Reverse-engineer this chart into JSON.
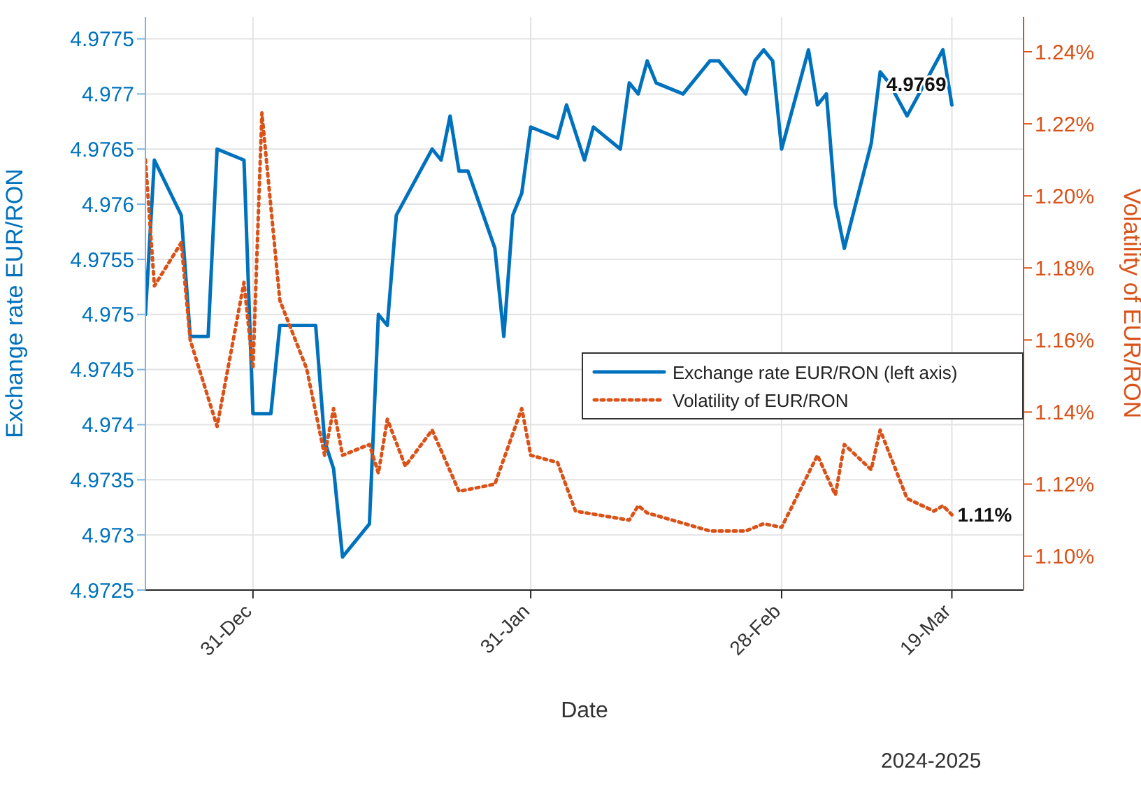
{
  "chart_data": {
    "type": "line",
    "xlabel": "Date",
    "ylabel": "Exchange rate EUR/RON",
    "y2label": "Volatility of EUR/RON",
    "xlim": [
      "2024-12-19",
      "2025-03-27"
    ],
    "xticks": [
      {
        "value": "2024-12-31",
        "label": "31-Dec"
      },
      {
        "value": "2025-01-31",
        "label": "31-Jan"
      },
      {
        "value": "2025-02-28",
        "label": "28-Feb"
      },
      {
        "value": "2025-03-19",
        "label": "19-Mar"
      }
    ],
    "ylim": [
      4.9725,
      4.9777
    ],
    "yticks": [
      4.9725,
      4.973,
      4.9735,
      4.974,
      4.9745,
      4.975,
      4.9755,
      4.976,
      4.9765,
      4.977,
      4.9775
    ],
    "y2lim": [
      1.0906,
      1.2497
    ],
    "y2ticks": [
      {
        "value": 1.1,
        "label": "1.10%"
      },
      {
        "value": 1.12,
        "label": "1.12%"
      },
      {
        "value": 1.14,
        "label": "1.14%"
      },
      {
        "value": 1.16,
        "label": "1.16%"
      },
      {
        "value": 1.18,
        "label": "1.18%"
      },
      {
        "value": 1.2,
        "label": "1.20%"
      },
      {
        "value": 1.22,
        "label": "1.22%"
      },
      {
        "value": 1.24,
        "label": "1.24%"
      }
    ],
    "grid": true,
    "legend": "right",
    "marker": "none",
    "series": [
      {
        "name": "Exchange rate EUR/RON (left axis)",
        "color": "#0072bd",
        "line_style": "solid",
        "x": [
          "2024-12-19",
          "2024-12-20",
          "2024-12-23",
          "2024-12-24",
          "2024-12-26",
          "2024-12-27",
          "2024-12-30",
          "2024-12-31",
          "2025-01-02",
          "2025-01-03",
          "2025-01-07",
          "2025-01-08",
          "2025-01-09",
          "2025-01-10",
          "2025-01-13",
          "2025-01-14",
          "2025-01-15",
          "2025-01-16",
          "2025-01-20",
          "2025-01-21",
          "2025-01-22",
          "2025-01-23",
          "2025-01-24",
          "2025-01-27",
          "2025-01-28",
          "2025-01-29",
          "2025-01-30",
          "2025-01-31",
          "2025-02-03",
          "2025-02-04",
          "2025-02-06",
          "2025-02-07",
          "2025-02-10",
          "2025-02-11",
          "2025-02-12",
          "2025-02-13",
          "2025-02-14",
          "2025-02-17",
          "2025-02-20",
          "2025-02-21",
          "2025-02-24",
          "2025-02-25",
          "2025-02-26",
          "2025-02-27",
          "2025-02-28",
          "2025-03-03",
          "2025-03-04",
          "2025-03-05",
          "2025-03-06",
          "2025-03-07",
          "2025-03-10",
          "2025-03-11",
          "2025-03-12",
          "2025-03-14",
          "2025-03-17",
          "2025-03-18",
          "2025-03-19"
        ],
        "values": [
          4.975,
          4.9764,
          4.9759,
          4.9748,
          4.9748,
          4.9765,
          4.9764,
          4.9741,
          4.9741,
          4.9749,
          4.9749,
          4.97385,
          4.9736,
          4.9728,
          4.9731,
          4.975,
          4.9749,
          4.9759,
          4.9765,
          4.9764,
          4.9768,
          4.9763,
          4.9763,
          4.9756,
          4.9748,
          4.9759,
          4.9761,
          4.9767,
          4.9766,
          4.9769,
          4.9764,
          4.9767,
          4.9765,
          4.9771,
          4.977,
          4.9773,
          4.9771,
          4.977,
          4.9773,
          4.9773,
          4.977,
          4.9773,
          4.9774,
          4.9773,
          4.9765,
          4.9774,
          4.9769,
          4.977,
          4.976,
          4.9756,
          4.97655,
          4.9772,
          4.9771,
          4.9768,
          4.97725,
          4.9774,
          4.9769
        ]
      },
      {
        "name": "Volatility of EUR/RON",
        "color": "#d95319",
        "line_style": "dotted",
        "axis": "y2",
        "x": [
          "2024-12-19",
          "2024-12-20",
          "2024-12-23",
          "2024-12-24",
          "2024-12-27",
          "2024-12-30",
          "2024-12-31",
          "2025-01-01",
          "2025-01-03",
          "2025-01-06",
          "2025-01-08",
          "2025-01-09",
          "2025-01-10",
          "2025-01-13",
          "2025-01-14",
          "2025-01-15",
          "2025-01-17",
          "2025-01-20",
          "2025-01-23",
          "2025-01-27",
          "2025-01-30",
          "2025-01-31",
          "2025-02-03",
          "2025-02-05",
          "2025-02-11",
          "2025-02-12",
          "2025-02-13",
          "2025-02-20",
          "2025-02-24",
          "2025-02-26",
          "2025-02-28",
          "2025-03-04",
          "2025-03-06",
          "2025-03-07",
          "2025-03-10",
          "2025-03-11",
          "2025-03-14",
          "2025-03-17",
          "2025-03-18",
          "2025-03-19"
        ],
        "values": [
          1.21,
          1.175,
          1.187,
          1.16,
          1.136,
          1.176,
          1.152,
          1.223,
          1.171,
          1.152,
          1.128,
          1.141,
          1.128,
          1.131,
          1.123,
          1.138,
          1.125,
          1.135,
          1.118,
          1.12,
          1.141,
          1.128,
          1.126,
          1.1125,
          1.11,
          1.114,
          1.112,
          1.107,
          1.107,
          1.109,
          1.108,
          1.128,
          1.117,
          1.131,
          1.124,
          1.135,
          1.116,
          1.1125,
          1.114,
          1.1115
        ]
      }
    ],
    "annotations": [
      {
        "text": "4.9769",
        "x": "2025-03-19",
        "y": 4.9769
      },
      "1.11%",
      "2024-2025"
    ]
  }
}
